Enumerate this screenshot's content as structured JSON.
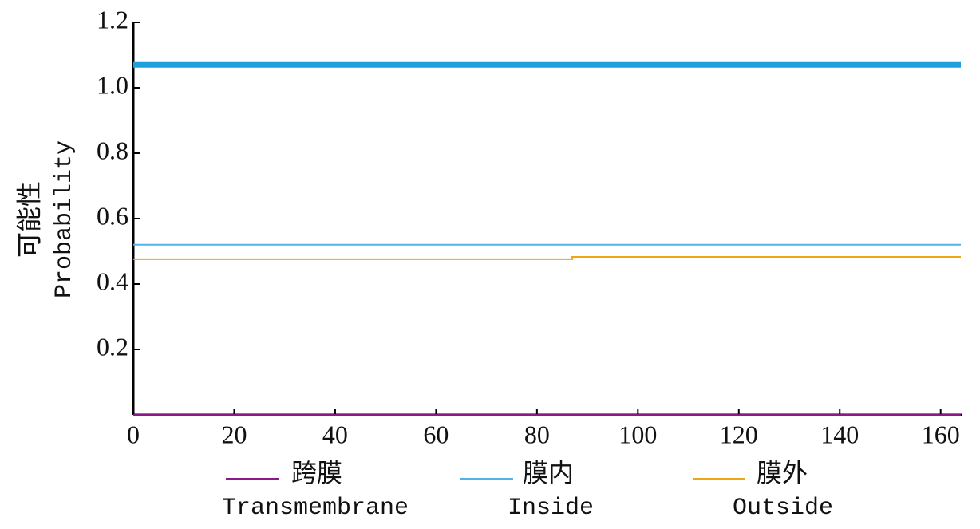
{
  "chart_data": {
    "type": "line",
    "ylabel": [
      "可能性",
      "Probability"
    ],
    "x": [
      0,
      87,
      87,
      164
    ],
    "series": [
      {
        "name": [
          "跨膜",
          "Transmembrane"
        ],
        "color": "#8b1a89",
        "values": [
          0,
          0,
          0,
          0
        ]
      },
      {
        "name": [
          "膜内",
          "Inside"
        ],
        "color": "#4fb3e6",
        "values": [
          0.52,
          0.52,
          0.52,
          0.52
        ]
      },
      {
        "name": [
          "膜外",
          "Outside"
        ],
        "color": "#eda614",
        "values": [
          0.476,
          0.476,
          0.483,
          0.483
        ]
      }
    ],
    "band": {
      "value": 1.07,
      "color": "#1ea0dc"
    },
    "xlim": [
      0,
      164
    ],
    "ylim": [
      0,
      1.2
    ],
    "xticks": [
      0,
      20,
      40,
      60,
      80,
      100,
      120,
      140,
      160
    ],
    "yticks": [
      0.2,
      0.4,
      0.6,
      0.8,
      {
        "value": 1,
        "label": "1.0"
      },
      1.2
    ]
  }
}
